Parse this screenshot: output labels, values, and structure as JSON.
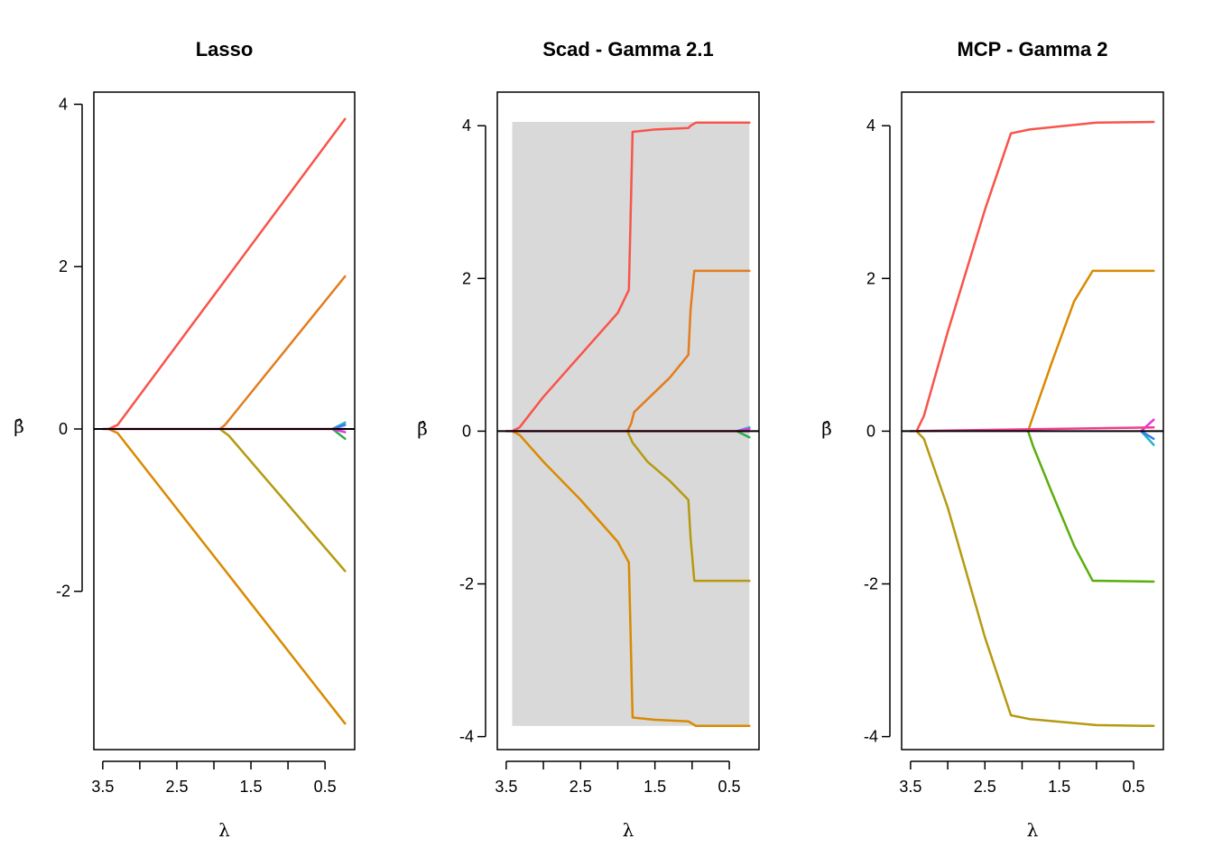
{
  "chart_data": [
    {
      "type": "line",
      "title": "Lasso",
      "xlabel": "λ",
      "ylabel": "β̂",
      "xlim": [
        3.62,
        0.1
      ],
      "ylim": [
        -3.95,
        4.15
      ],
      "x_reversed": true,
      "x_ticks": [
        3.5,
        3.0,
        2.5,
        2.0,
        1.5,
        1.0,
        0.5
      ],
      "x_tick_labels": [
        "3.5",
        "",
        "2.5",
        "",
        "1.5",
        "",
        "0.5"
      ],
      "y_ticks": [
        -2,
        0,
        2,
        4
      ],
      "y_tick_labels": [
        "-2",
        "0",
        "2",
        "4"
      ],
      "shaded_region": null,
      "series": [
        {
          "color": "#F8544A",
          "x": [
            3.42,
            3.3,
            0.23
          ],
          "y": [
            0.0,
            0.05,
            3.82
          ]
        },
        {
          "color": "#E37C1E",
          "x": [
            1.92,
            1.85,
            0.23
          ],
          "y": [
            0.0,
            0.05,
            1.88
          ]
        },
        {
          "color": "#D98A00",
          "x": [
            3.42,
            3.3,
            0.23
          ],
          "y": [
            0.0,
            -0.05,
            -3.63
          ]
        },
        {
          "color": "#B59A10",
          "x": [
            1.92,
            1.8,
            0.23
          ],
          "y": [
            0.0,
            -0.08,
            -1.75
          ]
        },
        {
          "color": "#22B14C",
          "x": [
            0.4,
            0.23
          ],
          "y": [
            0.0,
            -0.12
          ]
        },
        {
          "color": "#1FB5C9",
          "x": [
            0.4,
            0.23
          ],
          "y": [
            0.0,
            0.08
          ]
        },
        {
          "color": "#3B7BE8",
          "x": [
            0.4,
            0.23
          ],
          "y": [
            0.0,
            0.05
          ]
        },
        {
          "color": "#E335E6",
          "x": [
            0.4,
            0.23
          ],
          "y": [
            0.0,
            -0.04
          ]
        },
        {
          "color": "#F23C8F",
          "x": [
            3.5,
            0.23
          ],
          "y": [
            0.0,
            0.0
          ]
        }
      ]
    },
    {
      "type": "line",
      "title": "Scad - Gamma 2.1",
      "xlabel": "λ",
      "ylabel": "β̂",
      "xlim": [
        3.62,
        0.1
      ],
      "ylim": [
        -4.17,
        4.44
      ],
      "x_reversed": true,
      "x_ticks": [
        3.5,
        3.0,
        2.5,
        2.0,
        1.5,
        1.0,
        0.5
      ],
      "x_tick_labels": [
        "3.5",
        "",
        "2.5",
        "",
        "1.5",
        "",
        "0.5"
      ],
      "y_ticks": [
        -4,
        -2,
        0,
        2,
        4
      ],
      "y_tick_labels": [
        "-4",
        "-2",
        "0",
        "2",
        "4"
      ],
      "shaded_region": {
        "x": [
          3.42,
          0.23
        ],
        "y": [
          -3.86,
          4.05
        ],
        "color": "#D9D9D9"
      },
      "series": [
        {
          "color": "#F8544A",
          "x": [
            3.42,
            3.32,
            3.0,
            2.5,
            2.0,
            1.85,
            1.8,
            1.5,
            1.05,
            1.02,
            0.95,
            0.23
          ],
          "y": [
            0.0,
            0.05,
            0.45,
            1.0,
            1.55,
            1.85,
            3.92,
            3.95,
            3.97,
            4.0,
            4.04,
            4.04
          ]
        },
        {
          "color": "#E37C1E",
          "x": [
            1.87,
            1.82,
            1.78,
            1.3,
            1.05,
            1.02,
            0.97,
            0.23
          ],
          "y": [
            0.0,
            0.1,
            0.25,
            0.7,
            1.0,
            1.6,
            2.1,
            2.1
          ]
        },
        {
          "color": "#D98A00",
          "x": [
            3.42,
            3.32,
            3.0,
            2.5,
            2.0,
            1.85,
            1.8,
            1.5,
            1.05,
            0.95,
            0.23
          ],
          "y": [
            0.0,
            -0.05,
            -0.4,
            -0.9,
            -1.45,
            -1.72,
            -3.75,
            -3.78,
            -3.8,
            -3.86,
            -3.86
          ]
        },
        {
          "color": "#B59A10",
          "x": [
            1.87,
            1.8,
            1.6,
            1.3,
            1.05,
            1.02,
            0.97,
            0.23
          ],
          "y": [
            0.0,
            -0.15,
            -0.4,
            -0.65,
            -0.9,
            -1.4,
            -1.96,
            -1.96
          ]
        },
        {
          "color": "#22B14C",
          "x": [
            0.4,
            0.23
          ],
          "y": [
            0.0,
            -0.08
          ]
        },
        {
          "color": "#1FB5C9",
          "x": [
            0.4,
            0.23
          ],
          "y": [
            0.0,
            0.05
          ]
        },
        {
          "color": "#E335E6",
          "x": [
            0.4,
            0.23
          ],
          "y": [
            0.0,
            0.03
          ]
        },
        {
          "color": "#F23C8F",
          "x": [
            3.5,
            0.23
          ],
          "y": [
            0.0,
            0.0
          ]
        }
      ]
    },
    {
      "type": "line",
      "title": "MCP - Gamma 2",
      "xlabel": "λ",
      "ylabel": "β̂",
      "xlim": [
        3.62,
        0.1
      ],
      "ylim": [
        -4.17,
        4.44
      ],
      "x_reversed": true,
      "x_ticks": [
        3.5,
        3.0,
        2.5,
        2.0,
        1.5,
        1.0,
        0.5
      ],
      "x_tick_labels": [
        "3.5",
        "",
        "2.5",
        "",
        "1.5",
        "",
        "0.5"
      ],
      "y_ticks": [
        -4,
        -2,
        0,
        2,
        4
      ],
      "y_tick_labels": [
        "-4",
        "-2",
        "0",
        "2",
        "4"
      ],
      "shaded_region": null,
      "series": [
        {
          "color": "#F8544A",
          "x": [
            3.42,
            3.32,
            3.0,
            2.5,
            2.15,
            1.9,
            1.0,
            0.23
          ],
          "y": [
            0.0,
            0.2,
            1.3,
            2.9,
            3.9,
            3.95,
            4.04,
            4.05
          ]
        },
        {
          "color": "#D98A00",
          "x": [
            1.92,
            1.85,
            1.6,
            1.3,
            1.05,
            0.95,
            0.23
          ],
          "y": [
            0.0,
            0.2,
            0.9,
            1.7,
            2.1,
            2.1,
            2.1
          ]
        },
        {
          "color": "#B59A10",
          "x": [
            3.42,
            3.32,
            3.0,
            2.5,
            2.15,
            1.9,
            1.0,
            0.23
          ],
          "y": [
            0.0,
            -0.1,
            -1.0,
            -2.7,
            -3.72,
            -3.77,
            -3.85,
            -3.86
          ]
        },
        {
          "color": "#5AAE0C",
          "x": [
            1.92,
            1.85,
            1.6,
            1.3,
            1.05,
            0.95,
            0.23
          ],
          "y": [
            0.0,
            -0.2,
            -0.8,
            -1.5,
            -1.96,
            -1.96,
            -1.97
          ]
        },
        {
          "color": "#1FB5C9",
          "x": [
            0.4,
            0.23
          ],
          "y": [
            0.0,
            -0.18
          ]
        },
        {
          "color": "#3B7BE8",
          "x": [
            0.4,
            0.23
          ],
          "y": [
            0.0,
            -0.1
          ]
        },
        {
          "color": "#E335E6",
          "x": [
            0.4,
            0.23
          ],
          "y": [
            0.0,
            0.15
          ]
        },
        {
          "color": "#F23C8F",
          "x": [
            3.5,
            0.23
          ],
          "y": [
            0.0,
            0.05
          ]
        }
      ]
    }
  ]
}
